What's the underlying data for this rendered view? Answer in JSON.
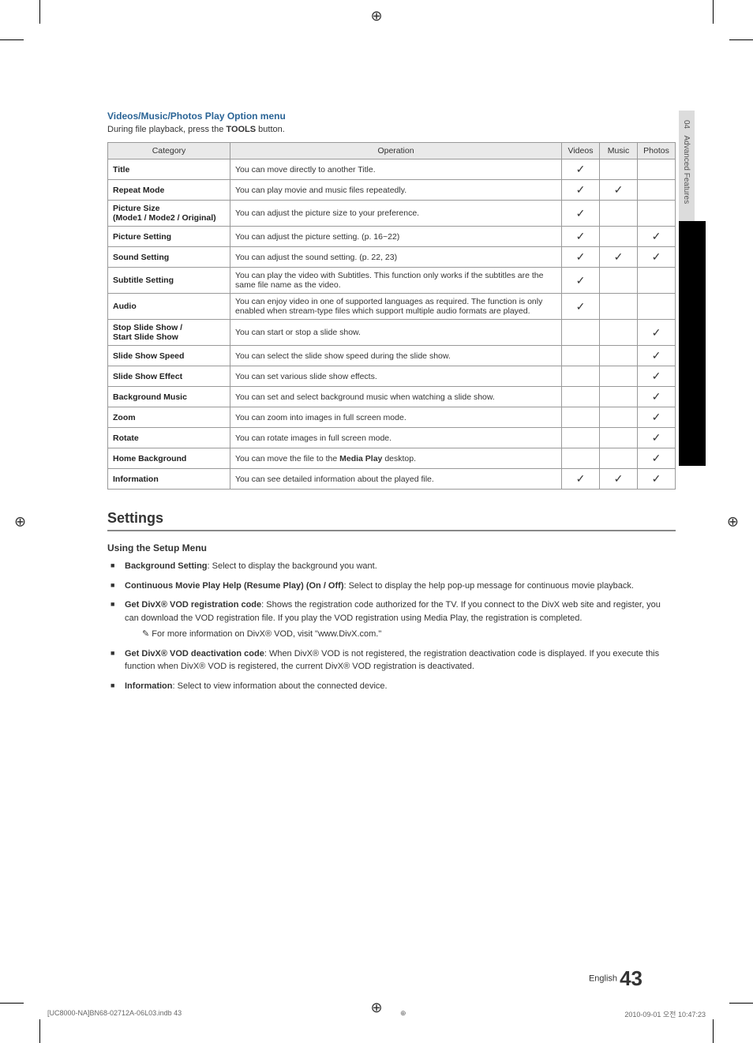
{
  "registration_mark": "⊕",
  "cropmarks": true,
  "side_tab": {
    "chapter": "04",
    "label": "Advanced Features"
  },
  "option_menu": {
    "heading": "Videos/Music/Photos Play Option menu",
    "subheading_prefix": "During file playback, press the ",
    "subheading_bold": "TOOLS",
    "subheading_suffix": " button.",
    "columns": {
      "category": "Category",
      "operation": "Operation",
      "videos": "Videos",
      "music": "Music",
      "photos": "Photos"
    },
    "rows": [
      {
        "category": "Title",
        "operation": "You can move directly to another Title.",
        "videos": true,
        "music": false,
        "photos": false
      },
      {
        "category": "Repeat Mode",
        "operation": "You can play movie and music files repeatedly.",
        "videos": true,
        "music": true,
        "photos": false
      },
      {
        "category": "Picture Size\n(Mode1 / Mode2 / Original)",
        "operation": "You can adjust the picture size to your preference.",
        "videos": true,
        "music": false,
        "photos": false
      },
      {
        "category": "Picture Setting",
        "operation": "You can adjust the picture setting. (p. 16~22)",
        "videos": true,
        "music": false,
        "photos": true
      },
      {
        "category": "Sound Setting",
        "operation": "You can adjust the sound setting. (p. 22, 23)",
        "videos": true,
        "music": true,
        "photos": true
      },
      {
        "category": "Subtitle Setting",
        "operation": "You can play the video with Subtitles. This function only works if the subtitles are the same file name as the video.",
        "videos": true,
        "music": false,
        "photos": false
      },
      {
        "category": "Audio",
        "operation": "You can enjoy video in one of supported languages as required. The function is only enabled when stream-type files which support multiple audio formats are played.",
        "videos": true,
        "music": false,
        "photos": false
      },
      {
        "category": "Stop Slide Show /\nStart Slide Show",
        "operation": "You can start or stop a slide show.",
        "videos": false,
        "music": false,
        "photos": true
      },
      {
        "category": "Slide Show Speed",
        "operation": "You can select the slide show speed during the slide show.",
        "videos": false,
        "music": false,
        "photos": true
      },
      {
        "category": "Slide Show Effect",
        "operation": "You can set various slide show effects.",
        "videos": false,
        "music": false,
        "photos": true
      },
      {
        "category": "Background Music",
        "operation": "You can set and select background music when watching a slide show.",
        "videos": false,
        "music": false,
        "photos": true
      },
      {
        "category": "Zoom",
        "operation": "You can zoom into images in full screen mode.",
        "videos": false,
        "music": false,
        "photos": true
      },
      {
        "category": "Rotate",
        "operation": "You can rotate images in full screen mode.",
        "videos": false,
        "music": false,
        "photos": true
      },
      {
        "category": "Home Background",
        "operation_prefix": "You can move the file to the ",
        "operation_bold": "Media Play",
        "operation_suffix": " desktop.",
        "videos": false,
        "music": false,
        "photos": true
      },
      {
        "category": "Information",
        "operation": "You can see detailed information about the played file.",
        "videos": true,
        "music": true,
        "photos": true
      }
    ],
    "check_glyph": "✓"
  },
  "settings": {
    "heading": "Settings",
    "subheading": "Using the Setup Menu",
    "items": [
      {
        "bold": "Background Setting",
        "text": ": Select to display the background you want."
      },
      {
        "bold": "Continuous Movie Play Help (Resume Play) (On / Off)",
        "text": ": Select to display the help pop-up message for continuous movie playback."
      },
      {
        "bold": "Get DivX® VOD registration code",
        "text": ": Shows the registration code authorized for the TV. If you connect to the DivX web site and register, you can download the VOD registration file. If you play the VOD registration using Media Play, the registration is completed.",
        "note": "For more information on DivX® VOD, visit \"www.DivX.com.\""
      },
      {
        "bold": "Get DivX® VOD deactivation code",
        "text": ": When DivX® VOD is not registered, the registration deactivation code is displayed. If you execute this function when DivX® VOD is registered, the current DivX® VOD registration is deactivated."
      },
      {
        "bold": "Information",
        "text": ": Select to view information about the connected device."
      }
    ]
  },
  "footer": {
    "lang": "English",
    "page": "43"
  },
  "imprint": {
    "left": "[UC8000-NA]BN68-02712A-06L03.indb   43",
    "right": "2010-09-01   오전 10:47:23"
  }
}
